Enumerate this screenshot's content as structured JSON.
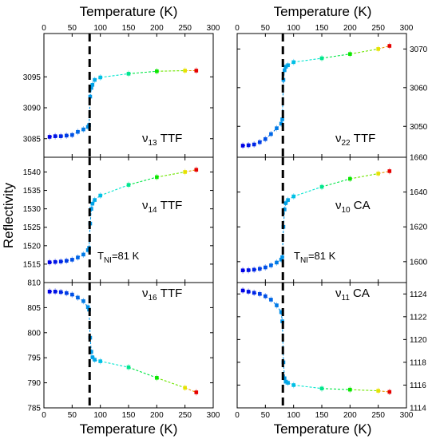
{
  "figure": {
    "ylabel": "Reflectivity",
    "xlabel_top": "Temperature (K)",
    "xlabel_bottom": "Temperature (K)",
    "transition_label": "T",
    "transition_sub": "NI",
    "transition_value": "=81 K",
    "transition_T": 81
  },
  "chart_data": [
    {
      "type": "scatter",
      "panel": "v13 TTF",
      "label_base": "ν",
      "label_sub": "13",
      "label_text": " TTF",
      "xlim": [
        0,
        300
      ],
      "ylim": [
        3082,
        3102
      ],
      "xticks": [
        0,
        50,
        100,
        150,
        200,
        250,
        300
      ],
      "yticks": [
        3085,
        3090,
        3095
      ],
      "x": [
        10,
        20,
        30,
        40,
        50,
        60,
        70,
        78,
        80,
        82,
        84,
        86,
        90,
        100,
        150,
        200,
        250,
        270
      ],
      "y": [
        3085.3,
        3085.4,
        3085.4,
        3085.5,
        3085.6,
        3086.1,
        3086.5,
        3086.9,
        3087.2,
        3091.8,
        3093.2,
        3093.7,
        3094.5,
        3094.9,
        3095.5,
        3095.9,
        3096.0,
        3096.0
      ]
    },
    {
      "type": "scatter",
      "panel": "v22 TTF",
      "label_base": "ν",
      "label_sub": "22",
      "label_text": " TTF",
      "xlim": [
        0,
        300
      ],
      "ylim": [
        3042,
        3074
      ],
      "xticks": [
        0,
        50,
        100,
        150,
        200,
        250,
        300
      ],
      "yticks": [
        3050,
        3060,
        3070
      ],
      "x": [
        10,
        20,
        30,
        40,
        50,
        60,
        70,
        78,
        80,
        82,
        84,
        86,
        90,
        100,
        150,
        200,
        250,
        270
      ],
      "y": [
        3045.0,
        3045.1,
        3045.3,
        3045.9,
        3046.7,
        3048.0,
        3049.5,
        3050.7,
        3051.8,
        3062.0,
        3064.5,
        3065.4,
        3065.8,
        3066.6,
        3067.6,
        3068.7,
        3070.0,
        3070.8
      ]
    },
    {
      "type": "scatter",
      "panel": "v14 TTF",
      "label_base": "ν",
      "label_sub": "14",
      "label_text": " TTF",
      "xlim": [
        0,
        300
      ],
      "ylim": [
        1510,
        1544
      ],
      "xticks": [
        0,
        50,
        100,
        150,
        200,
        250,
        300
      ],
      "yticks": [
        1515,
        1520,
        1525,
        1530,
        1535,
        1540
      ],
      "x": [
        10,
        20,
        30,
        40,
        50,
        60,
        70,
        78,
        80,
        82,
        84,
        86,
        90,
        100,
        150,
        200,
        250,
        270
      ],
      "y": [
        1515.5,
        1515.6,
        1515.7,
        1515.9,
        1516.2,
        1516.8,
        1517.6,
        1518.8,
        1519.4,
        1526.0,
        1530.0,
        1531.4,
        1532.4,
        1533.6,
        1536.5,
        1538.6,
        1540.0,
        1540.6
      ]
    },
    {
      "type": "scatter",
      "panel": "v10 CA",
      "label_base": "ν",
      "label_sub": "10",
      "label_text": " CA",
      "xlim": [
        0,
        300
      ],
      "ylim": [
        1588,
        1660
      ],
      "xticks": [
        0,
        50,
        100,
        150,
        200,
        250,
        300
      ],
      "yticks": [
        1600,
        1620,
        1640,
        1660
      ],
      "x": [
        10,
        20,
        30,
        40,
        50,
        60,
        70,
        78,
        80,
        82,
        84,
        86,
        90,
        100,
        150,
        200,
        250,
        270
      ],
      "y": [
        1595.0,
        1595.1,
        1595.4,
        1595.9,
        1596.7,
        1597.9,
        1599.5,
        1601.2,
        1602.6,
        1620.0,
        1630.0,
        1633.6,
        1635.4,
        1637.5,
        1643.0,
        1647.6,
        1650.6,
        1652.0
      ]
    },
    {
      "type": "scatter",
      "panel": "v16 TTF",
      "label_base": "ν",
      "label_sub": "16",
      "label_text": " TTF",
      "xlim": [
        0,
        300
      ],
      "ylim": [
        785,
        810
      ],
      "xticks": [
        0,
        50,
        100,
        150,
        200,
        250,
        300
      ],
      "yticks": [
        785,
        790,
        795,
        800,
        805,
        810
      ],
      "x": [
        10,
        20,
        30,
        40,
        50,
        60,
        70,
        78,
        80,
        82,
        84,
        86,
        90,
        100,
        150,
        200,
        250,
        270
      ],
      "y": [
        808.2,
        808.2,
        808.1,
        807.9,
        807.6,
        807.0,
        806.3,
        805.1,
        804.6,
        799.0,
        796.2,
        795.1,
        794.6,
        794.3,
        793.1,
        791.0,
        789.0,
        788.1
      ]
    },
    {
      "type": "scatter",
      "panel": "v11 CA",
      "label_base": "ν",
      "label_sub": "11",
      "label_text": " CA",
      "xlim": [
        0,
        300
      ],
      "ylim": [
        1114,
        1125
      ],
      "xticks": [
        0,
        50,
        100,
        150,
        200,
        250,
        300
      ],
      "yticks": [
        1114,
        1116,
        1118,
        1120,
        1122,
        1124
      ],
      "x": [
        10,
        20,
        30,
        40,
        50,
        60,
        70,
        78,
        80,
        82,
        84,
        86,
        90,
        100,
        150,
        200,
        250,
        270
      ],
      "y": [
        1124.3,
        1124.2,
        1124.1,
        1124.0,
        1123.8,
        1123.5,
        1123.0,
        1122.4,
        1121.6,
        1118.0,
        1116.6,
        1116.3,
        1116.2,
        1116.0,
        1115.7,
        1115.6,
        1115.5,
        1115.4
      ]
    }
  ]
}
